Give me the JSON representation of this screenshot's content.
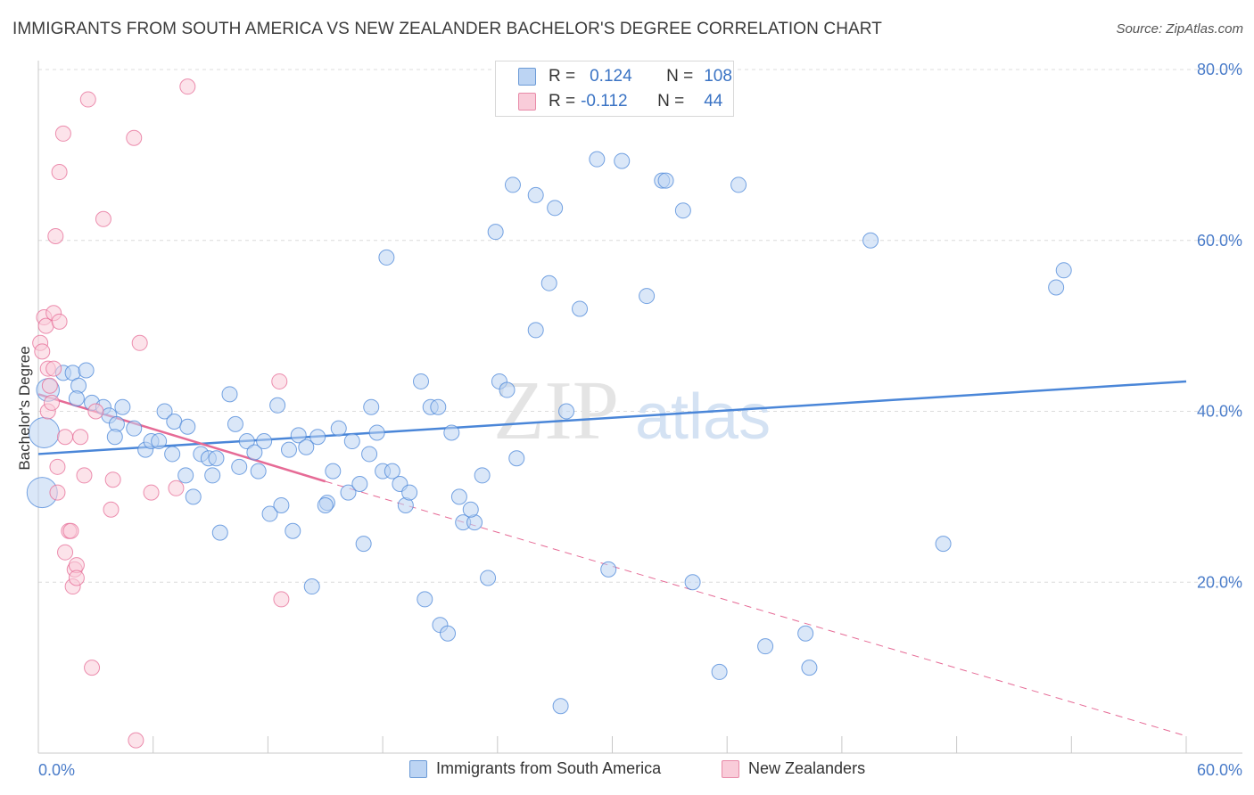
{
  "title": "IMMIGRANTS FROM SOUTH AMERICA VS NEW ZEALANDER BACHELOR'S DEGREE CORRELATION CHART",
  "source": "Source: ZipAtlas.com",
  "watermark": {
    "zip": "ZIP",
    "atlas": "atlas"
  },
  "legend": {
    "rows": [
      {
        "r_label": "R =",
        "r_value": "0.124",
        "n_label": "N =",
        "n_value": "108",
        "color": "#a9c8f0",
        "border": "#6b9ad6"
      },
      {
        "r_label": "R =",
        "r_value": "-0.112",
        "n_label": "N =",
        "n_value": "44",
        "color": "#f7c2d2",
        "border": "#e88aa8"
      }
    ]
  },
  "bottom_legend": [
    {
      "label": "Immigrants from South America",
      "color": "#bcd4f3",
      "border": "#6b9ad6"
    },
    {
      "label": "New Zealanders",
      "color": "#f9ccd9",
      "border": "#e88aa8"
    }
  ],
  "chart_data": {
    "type": "scatter",
    "title": "IMMIGRANTS FROM SOUTH AMERICA VS NEW ZEALANDER BACHELOR'S DEGREE CORRELATION CHART",
    "xlabel": "",
    "ylabel": "Bachelor's Degree",
    "xlim": [
      0,
      60
    ],
    "ylim": [
      0,
      80
    ],
    "x_tick_labels": [
      "0.0%",
      "60.0%"
    ],
    "y_ticks": [
      20,
      40,
      60,
      80
    ],
    "y_tick_labels": [
      "20.0%",
      "40.0%",
      "60.0%",
      "80.0%"
    ],
    "grid": true,
    "series": [
      {
        "name": "Immigrants from South America",
        "color": "#4a86d8",
        "fill": "#bcd4f3",
        "points": [
          [
            0.2,
            30.5,
            2
          ],
          [
            0.3,
            37.5,
            2
          ],
          [
            0.5,
            42.5,
            1.5
          ],
          [
            1.3,
            44.5,
            1
          ],
          [
            1.8,
            44.5,
            1
          ],
          [
            2.1,
            43.0,
            1
          ],
          [
            2.5,
            44.8,
            1
          ],
          [
            2.0,
            41.5,
            1
          ],
          [
            2.8,
            41.0,
            1
          ],
          [
            3.4,
            40.5,
            1
          ],
          [
            3.7,
            39.5,
            1
          ],
          [
            4.4,
            40.5,
            1
          ],
          [
            4.1,
            38.5,
            1
          ],
          [
            4.0,
            37.0,
            1
          ],
          [
            5.0,
            38.0,
            1
          ],
          [
            5.6,
            35.5,
            1
          ],
          [
            5.9,
            36.5,
            1
          ],
          [
            6.3,
            36.5,
            1
          ],
          [
            6.6,
            40.0,
            1
          ],
          [
            7.1,
            38.8,
            1
          ],
          [
            7.0,
            35.0,
            1
          ],
          [
            7.8,
            38.2,
            1
          ],
          [
            7.7,
            32.5,
            1
          ],
          [
            8.1,
            30.0,
            1
          ],
          [
            8.5,
            35.0,
            1
          ],
          [
            8.9,
            34.5,
            1
          ],
          [
            9.1,
            32.5,
            1
          ],
          [
            9.3,
            34.5,
            1
          ],
          [
            9.5,
            25.8,
            1
          ],
          [
            10.0,
            42.0,
            1
          ],
          [
            10.3,
            38.5,
            1
          ],
          [
            10.5,
            33.5,
            1
          ],
          [
            10.9,
            36.5,
            1
          ],
          [
            11.5,
            33.0,
            1
          ],
          [
            11.3,
            35.2,
            1
          ],
          [
            11.8,
            36.5,
            1
          ],
          [
            12.1,
            28.0,
            1
          ],
          [
            12.5,
            40.7,
            1
          ],
          [
            12.7,
            29.0,
            1
          ],
          [
            13.1,
            35.5,
            1
          ],
          [
            13.3,
            26.0,
            1
          ],
          [
            13.6,
            37.2,
            1
          ],
          [
            14.0,
            35.8,
            1
          ],
          [
            14.3,
            19.5,
            1
          ],
          [
            14.6,
            37.0,
            1
          ],
          [
            15.1,
            29.3,
            1
          ],
          [
            15.0,
            29.0,
            1
          ],
          [
            15.4,
            33.0,
            1
          ],
          [
            15.7,
            38.0,
            1
          ],
          [
            16.2,
            30.5,
            1
          ],
          [
            16.4,
            36.5,
            1
          ],
          [
            16.8,
            31.5,
            1
          ],
          [
            17.0,
            24.5,
            1
          ],
          [
            17.3,
            35.0,
            1
          ],
          [
            17.4,
            40.5,
            1
          ],
          [
            17.7,
            37.5,
            1
          ],
          [
            18.0,
            33.0,
            1
          ],
          [
            18.2,
            58.0,
            1
          ],
          [
            18.5,
            33.0,
            1
          ],
          [
            18.9,
            31.5,
            1
          ],
          [
            19.2,
            29.0,
            1
          ],
          [
            19.4,
            30.5,
            1
          ],
          [
            20.0,
            43.5,
            1
          ],
          [
            20.2,
            18.0,
            1
          ],
          [
            20.5,
            40.5,
            1
          ],
          [
            20.9,
            40.5,
            1
          ],
          [
            21.0,
            15.0,
            1
          ],
          [
            21.4,
            14.0,
            1
          ],
          [
            21.6,
            37.5,
            1
          ],
          [
            22.0,
            30.0,
            1
          ],
          [
            22.2,
            27.0,
            1
          ],
          [
            22.8,
            27.0,
            1
          ],
          [
            22.6,
            28.5,
            1
          ],
          [
            23.2,
            32.5,
            1
          ],
          [
            23.5,
            20.5,
            1
          ],
          [
            23.9,
            61.0,
            1
          ],
          [
            24.1,
            43.5,
            1
          ],
          [
            24.5,
            42.5,
            1
          ],
          [
            24.8,
            66.5,
            1
          ],
          [
            25.0,
            34.5,
            1
          ],
          [
            26.0,
            65.3,
            1
          ],
          [
            26.0,
            49.5,
            1
          ],
          [
            26.7,
            55.0,
            1
          ],
          [
            27.0,
            63.8,
            1
          ],
          [
            27.3,
            5.5,
            1
          ],
          [
            27.6,
            40.0,
            1
          ],
          [
            28.3,
            52.0,
            1
          ],
          [
            29.2,
            69.5,
            1
          ],
          [
            29.8,
            21.5,
            1
          ],
          [
            30.5,
            69.3,
            1
          ],
          [
            31.8,
            53.5,
            1
          ],
          [
            32.6,
            67.0,
            1
          ],
          [
            32.8,
            67.0,
            1
          ],
          [
            33.7,
            63.5,
            1
          ],
          [
            34.2,
            20.0,
            1
          ],
          [
            35.6,
            9.5,
            1
          ],
          [
            36.6,
            66.5,
            1
          ],
          [
            38.0,
            12.5,
            1
          ],
          [
            40.1,
            14.0,
            1
          ],
          [
            40.3,
            10.0,
            1
          ],
          [
            43.5,
            60.0,
            1
          ],
          [
            47.3,
            24.5,
            1
          ],
          [
            53.2,
            54.5,
            1
          ],
          [
            53.6,
            56.5,
            1
          ]
        ]
      },
      {
        "name": "New Zealanders",
        "color": "#e66b96",
        "fill": "#f9ccd9",
        "points": [
          [
            0.1,
            48.0,
            1
          ],
          [
            0.2,
            47.0,
            1
          ],
          [
            0.3,
            51.0,
            1
          ],
          [
            0.4,
            50.0,
            1
          ],
          [
            0.5,
            45.0,
            1
          ],
          [
            0.5,
            40.0,
            1
          ],
          [
            0.6,
            43.0,
            1
          ],
          [
            0.7,
            41.0,
            1
          ],
          [
            0.8,
            51.5,
            1
          ],
          [
            0.8,
            45.0,
            1
          ],
          [
            0.9,
            60.5,
            1
          ],
          [
            1.0,
            30.5,
            1
          ],
          [
            1.0,
            33.5,
            1
          ],
          [
            1.1,
            68.0,
            1
          ],
          [
            1.1,
            50.5,
            1
          ],
          [
            1.3,
            72.5,
            1
          ],
          [
            1.4,
            37.0,
            1
          ],
          [
            1.4,
            23.5,
            1
          ],
          [
            1.6,
            26.0,
            1
          ],
          [
            1.7,
            26.0,
            1
          ],
          [
            1.8,
            19.5,
            1
          ],
          [
            1.9,
            21.5,
            1
          ],
          [
            2.0,
            22.0,
            1
          ],
          [
            2.0,
            20.5,
            1
          ],
          [
            2.2,
            37.0,
            1
          ],
          [
            2.4,
            32.5,
            1
          ],
          [
            2.6,
            76.5,
            1
          ],
          [
            2.8,
            10.0,
            1
          ],
          [
            3.0,
            40.0,
            1
          ],
          [
            3.4,
            62.5,
            1
          ],
          [
            3.8,
            28.5,
            1
          ],
          [
            3.9,
            32.0,
            1
          ],
          [
            5.0,
            72.0,
            1
          ],
          [
            5.1,
            1.5,
            1
          ],
          [
            5.3,
            48.0,
            1
          ],
          [
            5.9,
            30.5,
            1
          ],
          [
            7.2,
            31.0,
            1
          ],
          [
            7.8,
            78.0,
            1
          ],
          [
            12.6,
            43.5,
            1
          ],
          [
            12.7,
            18.0,
            1
          ]
        ]
      }
    ],
    "trendlines": [
      {
        "series": "Immigrants from South America",
        "x": [
          0,
          60
        ],
        "y": [
          35.0,
          43.5
        ],
        "style": "solid"
      },
      {
        "series": "New Zealanders",
        "x": [
          0,
          15.0
        ],
        "y": [
          42.0,
          31.8
        ],
        "style": "solid"
      },
      {
        "series": "New Zealanders",
        "x": [
          15.0,
          60
        ],
        "y": [
          31.8,
          2.0
        ],
        "style": "dashed"
      }
    ]
  }
}
